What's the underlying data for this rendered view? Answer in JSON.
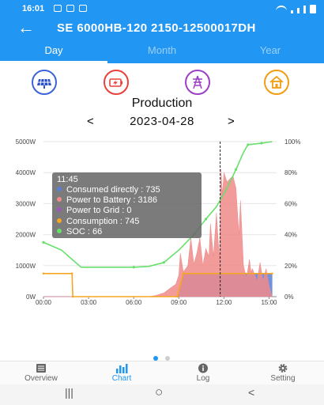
{
  "status": {
    "time": "16:01"
  },
  "header": {
    "title": "SE 6000HB-120 2150-12500017DH"
  },
  "tabs": [
    "Day",
    "Month",
    "Year"
  ],
  "active_tab": 0,
  "categories": [
    {
      "icon": "solar-panel-icon",
      "color": "#3a64d8"
    },
    {
      "icon": "battery-icon",
      "color": "#e8413a"
    },
    {
      "icon": "grid-tower-icon",
      "color": "#9b3fc5"
    },
    {
      "icon": "home-icon",
      "color": "#f39c12"
    }
  ],
  "production_title": "Production",
  "date_nav": {
    "prev": "<",
    "date": "2023-04-28",
    "next": ">"
  },
  "chart_data": {
    "type": "area",
    "x_ticks": [
      "00:00",
      "03:00",
      "06:00",
      "09:00",
      "12:00",
      "15:00"
    ],
    "y_left_ticks": [
      "0W",
      "1000W",
      "2000W",
      "3000W",
      "4000W",
      "5000W"
    ],
    "y_right_ticks": [
      "0%",
      "20%",
      "40%",
      "60%",
      "80%",
      "100%"
    ],
    "ylim_left": [
      0,
      5000
    ],
    "ylim_right": [
      0,
      100
    ],
    "xlim_hours": [
      0,
      15.5
    ],
    "series": [
      {
        "name": "Consumed directly",
        "color": "#5b7fd6",
        "axis": "left",
        "kind": "area",
        "points": [
          [
            0,
            0
          ],
          [
            8.9,
            0
          ],
          [
            9.3,
            740
          ],
          [
            10.0,
            745
          ],
          [
            11.0,
            735
          ],
          [
            12.0,
            740
          ],
          [
            13.0,
            735
          ],
          [
            14.0,
            740
          ],
          [
            15.2,
            745
          ],
          [
            15.2,
            0
          ]
        ]
      },
      {
        "name": "Power to Battery",
        "color": "#f08a8a",
        "axis": "left",
        "kind": "area",
        "points": [
          [
            0,
            0
          ],
          [
            7.0,
            0
          ],
          [
            7.5,
            40
          ],
          [
            8.0,
            120
          ],
          [
            8.5,
            300
          ],
          [
            8.8,
            400
          ],
          [
            9.0,
            700
          ],
          [
            9.1,
            1400
          ],
          [
            9.3,
            800
          ],
          [
            9.6,
            1000
          ],
          [
            9.8,
            1900
          ],
          [
            10.0,
            1050
          ],
          [
            10.2,
            1400
          ],
          [
            10.4,
            1900
          ],
          [
            10.6,
            1000
          ],
          [
            10.8,
            1550
          ],
          [
            11.0,
            1300
          ],
          [
            11.1,
            2350
          ],
          [
            11.3,
            1300
          ],
          [
            11.5,
            2700
          ],
          [
            11.7,
            1200
          ],
          [
            11.8,
            4120
          ],
          [
            11.9,
            3300
          ],
          [
            12.0,
            4000
          ],
          [
            12.2,
            3700
          ],
          [
            12.4,
            3800
          ],
          [
            12.6,
            3900
          ],
          [
            12.8,
            3500
          ],
          [
            13.0,
            2000
          ],
          [
            13.1,
            3100
          ],
          [
            13.3,
            1000
          ],
          [
            13.5,
            600
          ],
          [
            13.7,
            1200
          ],
          [
            13.8,
            800
          ],
          [
            13.9,
            900
          ],
          [
            14.2,
            500
          ],
          [
            14.4,
            1100
          ],
          [
            14.6,
            500
          ],
          [
            14.8,
            900
          ],
          [
            15.0,
            350
          ],
          [
            15.2,
            0
          ]
        ]
      },
      {
        "name": "Power to Grid",
        "color": "#9b59b6",
        "axis": "left",
        "kind": "line",
        "points": []
      },
      {
        "name": "Consumption",
        "color": "#f5a623",
        "axis": "left",
        "kind": "line",
        "points": [
          [
            0,
            745
          ],
          [
            1.9,
            745
          ],
          [
            1.95,
            0
          ],
          [
            8.9,
            0
          ],
          [
            9.3,
            745
          ],
          [
            15.2,
            745
          ]
        ]
      },
      {
        "name": "SOC",
        "color": "#66e06a",
        "axis": "right",
        "kind": "line",
        "points": [
          [
            0,
            35
          ],
          [
            1.2,
            30
          ],
          [
            2.5,
            19
          ],
          [
            4.0,
            19
          ],
          [
            6.0,
            19
          ],
          [
            7.0,
            19.5
          ],
          [
            8.0,
            22
          ],
          [
            9.0,
            30
          ],
          [
            10.0,
            40
          ],
          [
            10.8,
            50
          ],
          [
            11.5,
            58
          ],
          [
            12.2,
            70
          ],
          [
            12.8,
            82
          ],
          [
            13.3,
            93
          ],
          [
            13.6,
            98
          ],
          [
            14.5,
            99
          ],
          [
            15.2,
            100
          ]
        ]
      }
    ],
    "cursor_time_hours": 11.75,
    "tooltip": {
      "time": "11:45",
      "entries": [
        {
          "label": "Consumed directly",
          "value": "735",
          "color": "#5b7fd6"
        },
        {
          "label": "Power to Battery",
          "value": "3186",
          "color": "#f08a8a"
        },
        {
          "label": "Power to Grid",
          "value": "0",
          "color": "#9b59b6"
        },
        {
          "label": "Consumption",
          "value": "745",
          "color": "#f5a623"
        },
        {
          "label": "SOC",
          "value": "66",
          "color": "#66e06a"
        }
      ]
    }
  },
  "pager": {
    "count": 2,
    "active": 0
  },
  "bottom_nav": [
    {
      "label": "Overview",
      "icon": "overview-icon"
    },
    {
      "label": "Chart",
      "icon": "chart-icon"
    },
    {
      "label": "Log",
      "icon": "info-icon"
    },
    {
      "label": "Setting",
      "icon": "gear-icon"
    }
  ],
  "bottom_nav_active": 1,
  "system_nav": {
    "recents": "|||",
    "home": "○",
    "back": "<"
  },
  "colors": {
    "primary": "#2196F3"
  }
}
